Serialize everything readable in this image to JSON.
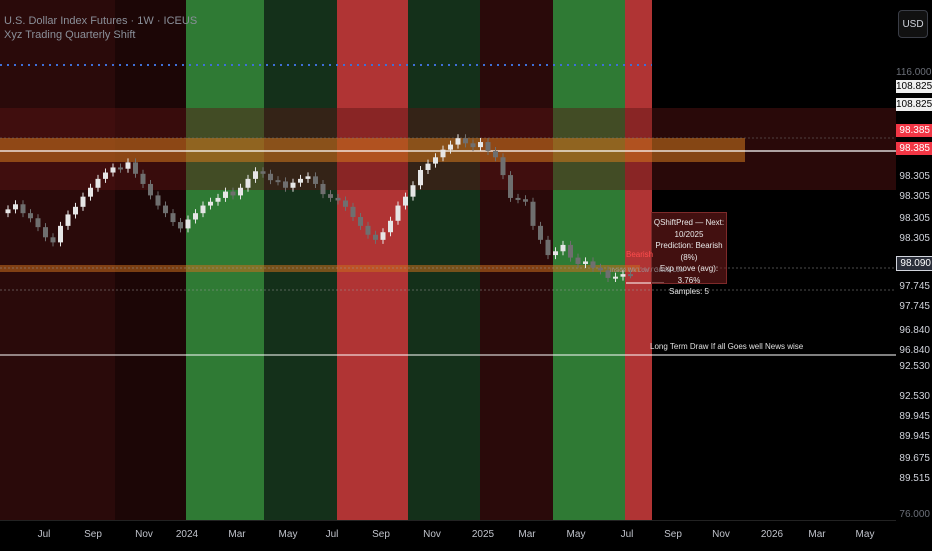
{
  "header": {
    "title": "U.S. Dollar Index Futures · 1W · ICEUS",
    "indicator": "Xyz Trading Quarterly Shift"
  },
  "currency_button": "USD",
  "price_axis": [
    {
      "text": "116.000",
      "style": "muted"
    },
    {
      "text": "108.825",
      "style": "hl-white"
    },
    {
      "text": "108.825",
      "style": "hl-white"
    },
    {
      "text": "98.385",
      "style": "hl-red"
    },
    {
      "text": "98.385",
      "style": "hl-red"
    },
    {
      "text": "98.305",
      "style": "normal"
    },
    {
      "text": "98.305",
      "style": "normal"
    },
    {
      "text": "98.305",
      "style": "normal"
    },
    {
      "text": "98.305",
      "style": "normal"
    },
    {
      "text": "98.090",
      "style": "hl-dark"
    },
    {
      "text": "97.745",
      "style": "normal"
    },
    {
      "text": "97.745",
      "style": "normal"
    },
    {
      "text": "96.840",
      "style": "normal"
    },
    {
      "text": "96.840",
      "style": "normal"
    },
    {
      "text": "92.530",
      "style": "normal"
    },
    {
      "text": "92.530",
      "style": "normal"
    },
    {
      "text": "89.945",
      "style": "normal"
    },
    {
      "text": "89.945",
      "style": "normal"
    },
    {
      "text": "89.675",
      "style": "normal"
    },
    {
      "text": "89.515",
      "style": "normal"
    },
    {
      "text": "76.000",
      "style": "muted"
    }
  ],
  "time_axis": [
    "Jul",
    "Sep",
    "Nov",
    "2024",
    "Mar",
    "May",
    "Jul",
    "Sep",
    "Nov",
    "2025",
    "Mar",
    "May",
    "Jul",
    "Sep",
    "Nov",
    "2026",
    "Mar",
    "May"
  ],
  "info_box": {
    "title": "QShiftPred — Next: 10/2025",
    "prediction": "Prediction: Bearish (8%)",
    "exp_move": "Exp move (avg): 3.76%",
    "samples": "Samples: 5"
  },
  "annotations": {
    "long_term": "Long Term Draw If all Goes well News wise",
    "bearish_tag": "Bearish",
    "low_label": "Inside Wk Low / Global Low"
  },
  "colors": {
    "bg": "#000000",
    "dark_red_band": "#2a0a0a",
    "green_band": "#2f7a34",
    "dark_green_band": "#14301a",
    "red_band": "#b03434",
    "orange_zone": "#c47a1c",
    "blue_dots": "#3f6fd8"
  },
  "chart_data": {
    "type": "candlestick",
    "title": "U.S. Dollar Index Futures · 1W · ICEUS",
    "x_range": [
      "2023-06",
      "2026-06"
    ],
    "ylim": [
      76.0,
      116.0
    ],
    "quarter_bands": [
      {
        "start": "2023-04-01",
        "end": "2023-07-01",
        "color": "dark-red"
      },
      {
        "start": "2023-07-01",
        "end": "2023-10-01",
        "color": "dark-red"
      },
      {
        "start": "2023-10-01",
        "end": "2024-01-01",
        "color": "dark-red"
      },
      {
        "start": "2024-01-01",
        "end": "2024-04-01",
        "color": "green"
      },
      {
        "start": "2024-04-01",
        "end": "2024-07-01",
        "color": "dark-green"
      },
      {
        "start": "2024-07-01",
        "end": "2024-10-01",
        "color": "red"
      },
      {
        "start": "2024-10-01",
        "end": "2025-01-01",
        "color": "dark-green"
      },
      {
        "start": "2025-01-01",
        "end": "2025-04-01",
        "color": "dark-red"
      },
      {
        "start": "2025-04-01",
        "end": "2025-07-01",
        "color": "green"
      },
      {
        "start": "2025-07-01",
        "end": "2025-08-15",
        "color": "red"
      }
    ],
    "horizontal_levels": [
      108.825,
      98.385,
      98.305,
      98.09,
      97.745,
      96.84
    ],
    "closes": [
      103.2,
      103.6,
      102.9,
      102.5,
      101.8,
      101.0,
      100.6,
      101.9,
      102.8,
      103.4,
      104.2,
      104.9,
      105.6,
      106.1,
      106.5,
      106.4,
      106.9,
      106.0,
      105.2,
      104.3,
      103.5,
      102.9,
      102.2,
      101.7,
      102.4,
      102.9,
      103.5,
      103.8,
      104.1,
      104.6,
      104.3,
      104.9,
      105.6,
      106.2,
      106.0,
      105.5,
      105.4,
      104.9,
      105.3,
      105.6,
      105.8,
      105.2,
      104.4,
      104.1,
      103.9,
      103.4,
      102.6,
      101.9,
      101.2,
      100.8,
      101.4,
      102.3,
      103.5,
      104.2,
      105.1,
      106.3,
      106.8,
      107.3,
      107.9,
      108.3,
      108.8,
      108.4,
      108.1,
      108.5,
      107.8,
      107.3,
      105.9,
      104.1,
      104.0,
      103.8,
      101.9,
      100.8,
      99.6,
      99.9,
      100.4,
      99.4,
      98.9,
      99.1,
      98.6,
      98.4,
      97.8,
      97.9,
      98.1,
      98.09
    ]
  }
}
